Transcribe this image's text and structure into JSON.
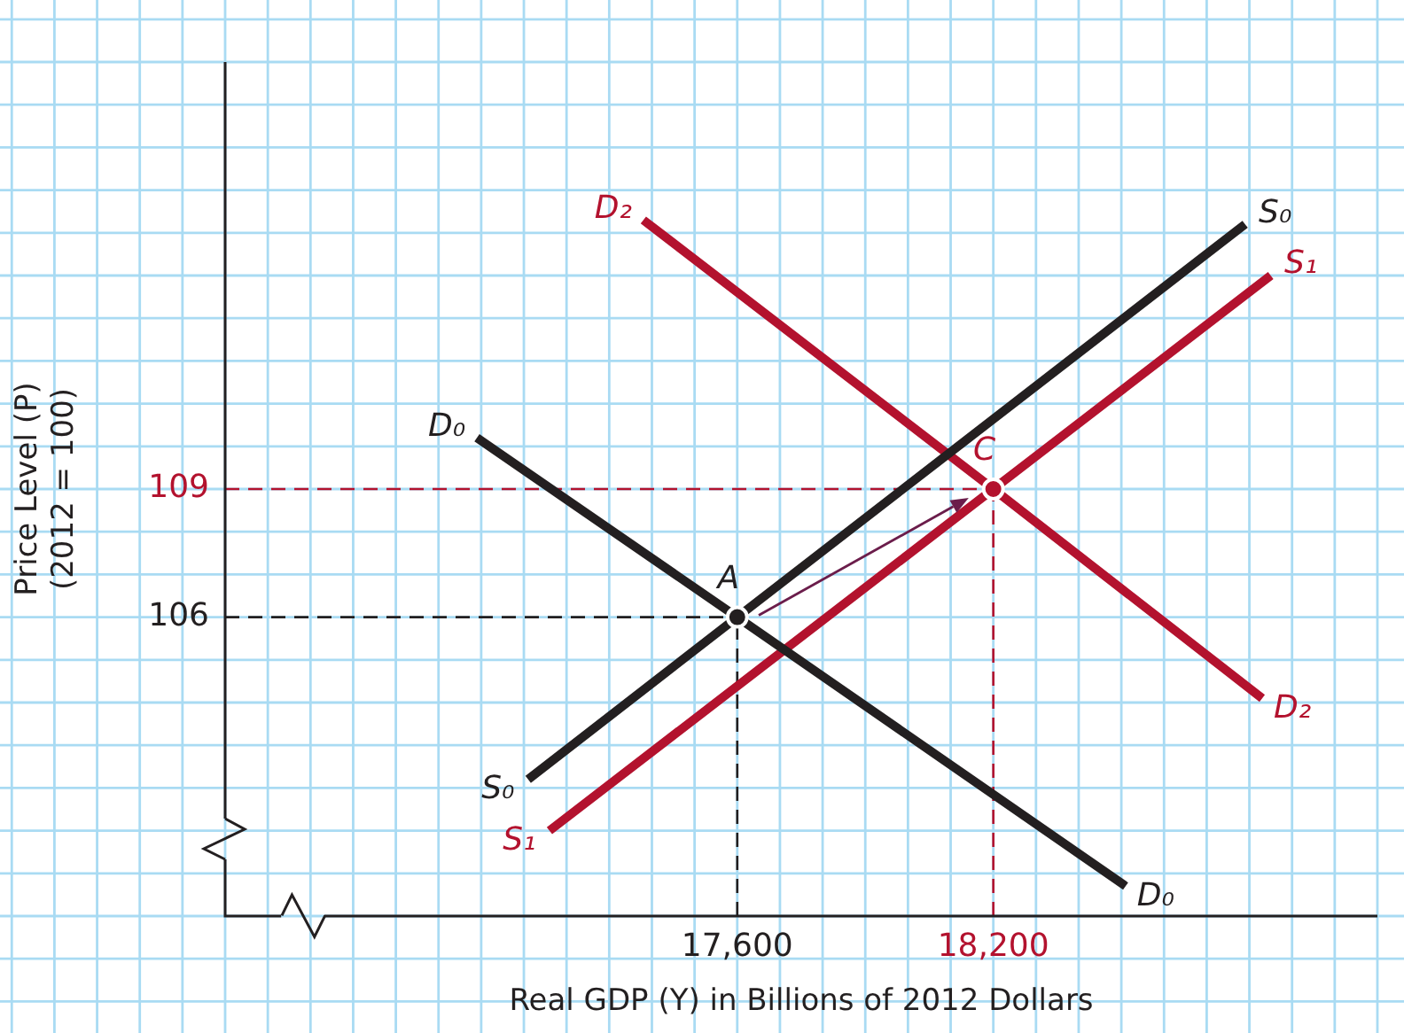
{
  "chart_data": {
    "type": "line",
    "xlabel": "Real GDP (Y) in Billions of 2012 Dollars",
    "ylabel": "Price Level (P)\n(2012 = 100)",
    "series": [
      {
        "name": "D₀",
        "color": "#231f20",
        "x": [
          16990,
          17600,
          18510
        ],
        "values": [
          110.2,
          106,
          99.7
        ]
      },
      {
        "name": "S₀",
        "color": "#231f20",
        "x": [
          17110,
          17600,
          18790
        ],
        "values": [
          102.2,
          106,
          115.2
        ]
      },
      {
        "name": "D₂",
        "color": "#b3122e",
        "x": [
          17380,
          18200,
          18830
        ],
        "values": [
          115.3,
          109,
          104.1
        ]
      },
      {
        "name": "S₁",
        "color": "#b3122e",
        "x": [
          17160,
          18200,
          18850
        ],
        "values": [
          101.0,
          109,
          114.0
        ]
      },
      {
        "type": "scatter",
        "marker": "circle",
        "x": [
          17600,
          18200
        ],
        "values": [
          106,
          109
        ],
        "colors": [
          "#231f20",
          "#b3122e"
        ]
      }
    ],
    "xlim": [
      16400,
      19100
    ],
    "ylim": [
      99,
      119
    ],
    "xticks": [
      {
        "value": 16400,
        "label": null
      },
      {
        "value": 16500,
        "label": null
      },
      {
        "value": 16600,
        "label": null
      },
      {
        "value": 16700,
        "label": null
      },
      {
        "value": 16800,
        "label": null
      },
      {
        "value": 16900,
        "label": null
      },
      {
        "value": 17000,
        "label": null
      },
      {
        "value": 17100,
        "label": null
      },
      {
        "value": 17200,
        "label": null
      },
      {
        "value": 17300,
        "label": null
      },
      {
        "value": 17400,
        "label": null
      },
      {
        "value": 17500,
        "label": null
      },
      {
        "value": 17600,
        "label": "17,600"
      },
      {
        "value": 17700,
        "label": null
      },
      {
        "value": 17800,
        "label": null
      },
      {
        "value": 17900,
        "label": null
      },
      {
        "value": 18000,
        "label": null
      },
      {
        "value": 18100,
        "label": null
      },
      {
        "value": 18200,
        "label": "18,200"
      },
      {
        "value": 18300,
        "label": null
      },
      {
        "value": 18400,
        "label": null
      },
      {
        "value": 18500,
        "label": null
      },
      {
        "value": 18600,
        "label": null
      },
      {
        "value": 18700,
        "label": null
      },
      {
        "value": 18800,
        "label": null
      },
      {
        "value": 18900,
        "label": null
      },
      {
        "value": 19000,
        "label": null
      },
      {
        "value": 19100,
        "label": null
      }
    ],
    "yticks": [
      {
        "value": 99,
        "label": null
      },
      {
        "value": 100,
        "label": null
      },
      {
        "value": 101,
        "label": null
      },
      {
        "value": 102,
        "label": null
      },
      {
        "value": 103,
        "label": null
      },
      {
        "value": 104,
        "label": null
      },
      {
        "value": 105,
        "label": null
      },
      106,
      {
        "value": 107,
        "label": null
      },
      {
        "value": 108,
        "label": null
      },
      109,
      {
        "value": 110,
        "label": null
      },
      {
        "value": 111,
        "label": null
      },
      {
        "value": 112,
        "label": null
      },
      {
        "value": 113,
        "label": null
      },
      {
        "value": 114,
        "label": null
      },
      {
        "value": 115,
        "label": null
      },
      {
        "value": 116,
        "label": null
      },
      {
        "value": 117,
        "label": null
      },
      {
        "value": 118,
        "label": null
      },
      {
        "value": 119,
        "label": null
      }
    ],
    "grid": true,
    "legend": false,
    "ref_lines": [
      {
        "axis": "x",
        "value": 17600,
        "color": "#231f20",
        "line_style": "dashed"
      },
      {
        "axis": "y",
        "value": 106,
        "color": "#231f20",
        "line_style": "dashed"
      },
      {
        "axis": "x",
        "value": 18200,
        "color": "#b3122e",
        "line_style": "dashed"
      },
      {
        "axis": "y",
        "value": 109,
        "color": "#b3122e",
        "line_style": "dashed"
      }
    ],
    "annotations": [
      {
        "text": "A",
        "x": 17600,
        "y": 106
      },
      {
        "text": "C",
        "x": 18200,
        "y": 109
      }
    ]
  }
}
